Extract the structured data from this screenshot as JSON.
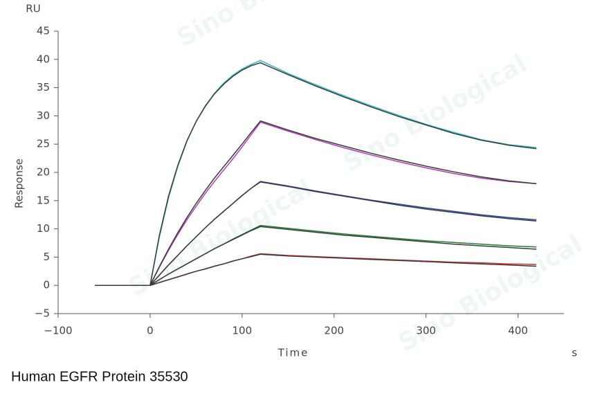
{
  "chart_data": {
    "type": "line",
    "y_unit": "RU",
    "ylabel": "Response",
    "xlabel": "Time",
    "x_unit": "s",
    "caption": "Human EGFR Protein 35530",
    "watermark": "Sino Biological",
    "xlim": [
      -100,
      450
    ],
    "xticks": [
      {
        "value": -100,
        "label": "−100"
      },
      0,
      100,
      200,
      300,
      400
    ],
    "ylim": [
      -5,
      45
    ],
    "yticks": [
      {
        "value": -5,
        "label": "−5"
      },
      0,
      5,
      10,
      15,
      20,
      25,
      30,
      35,
      40,
      45
    ],
    "x": [
      -60,
      0,
      10,
      20,
      30,
      40,
      50,
      60,
      70,
      80,
      90,
      100,
      110,
      120,
      150,
      180,
      210,
      240,
      270,
      300,
      330,
      360,
      390,
      420
    ],
    "series": [
      {
        "color": "#2ab7c6",
        "values": [
          0,
          0,
          8.5,
          15.5,
          21,
          25.5,
          29,
          31.8,
          34,
          35.8,
          37.2,
          38.3,
          39.1,
          39.8,
          37.5,
          35.5,
          33.6,
          31.8,
          30.1,
          28.5,
          27.1,
          25.8,
          24.9,
          24.4
        ]
      },
      {
        "color": "#b03cb8",
        "values": [
          0,
          0,
          3.2,
          6.2,
          9,
          11.6,
          14,
          16.3,
          18.4,
          20.4,
          22.4,
          24.5,
          26.7,
          28.9,
          27.3,
          25.8,
          24.4,
          23.1,
          21.9,
          20.8,
          19.8,
          19,
          18.4,
          18
        ]
      },
      {
        "color": "#2c44a8",
        "values": [
          0,
          0,
          1.8,
          3.6,
          5.3,
          7,
          8.6,
          10.2,
          11.7,
          13.1,
          14.5,
          15.9,
          17.2,
          18.4,
          17.6,
          16.7,
          15.9,
          15.1,
          14.4,
          13.7,
          13.1,
          12.5,
          12,
          11.6
        ]
      },
      {
        "color": "#1f7a33",
        "values": [
          0,
          0,
          1,
          2,
          2.9,
          3.8,
          4.7,
          5.6,
          6.5,
          7.3,
          8.2,
          9,
          9.8,
          10.6,
          10.1,
          9.6,
          9.1,
          8.7,
          8.3,
          7.9,
          7.6,
          7.3,
          7,
          6.8
        ]
      },
      {
        "color": "#d0302a",
        "values": [
          0,
          0,
          0.5,
          1,
          1.5,
          2,
          2.5,
          2.9,
          3.4,
          3.8,
          4.3,
          4.7,
          5.2,
          5.6,
          5.3,
          5.1,
          4.9,
          4.7,
          4.5,
          4.3,
          4.1,
          4,
          3.8,
          3.7
        ]
      },
      {
        "color": "#3a3a3a",
        "values": [
          0,
          0,
          8.8,
          15.8,
          21.2,
          25.6,
          29,
          31.7,
          33.9,
          35.6,
          37,
          38.1,
          38.9,
          39.4,
          37.3,
          35.3,
          33.4,
          31.6,
          29.9,
          28.4,
          26.9,
          25.7,
          24.8,
          24.2
        ]
      },
      {
        "color": "#3a3a3a",
        "values": [
          0,
          0,
          3.3,
          6.4,
          9.3,
          12,
          14.5,
          16.8,
          19,
          21,
          23,
          25,
          27.1,
          29.1,
          27.5,
          26,
          24.7,
          23.4,
          22.2,
          21.1,
          20.1,
          19.2,
          18.5,
          18
        ]
      },
      {
        "color": "#3a3a3a",
        "values": [
          0,
          0,
          1.8,
          3.6,
          5.3,
          7,
          8.6,
          10.2,
          11.7,
          13.1,
          14.5,
          15.9,
          17.2,
          18.3,
          17.5,
          16.6,
          15.8,
          15,
          14.2,
          13.5,
          12.9,
          12.3,
          11.8,
          11.4
        ]
      },
      {
        "color": "#3a3a3a",
        "values": [
          0,
          0,
          1,
          2,
          2.9,
          3.8,
          4.7,
          5.6,
          6.5,
          7.3,
          8.1,
          8.9,
          9.7,
          10.4,
          9.9,
          9.4,
          8.9,
          8.5,
          8.1,
          7.7,
          7.3,
          7,
          6.7,
          6.4
        ]
      },
      {
        "color": "#3a3a3a",
        "values": [
          0,
          0,
          0.5,
          1,
          1.5,
          2,
          2.5,
          2.9,
          3.4,
          3.8,
          4.3,
          4.7,
          5.1,
          5.5,
          5.2,
          5,
          4.8,
          4.6,
          4.4,
          4.2,
          4,
          3.8,
          3.6,
          3.4
        ]
      }
    ]
  }
}
